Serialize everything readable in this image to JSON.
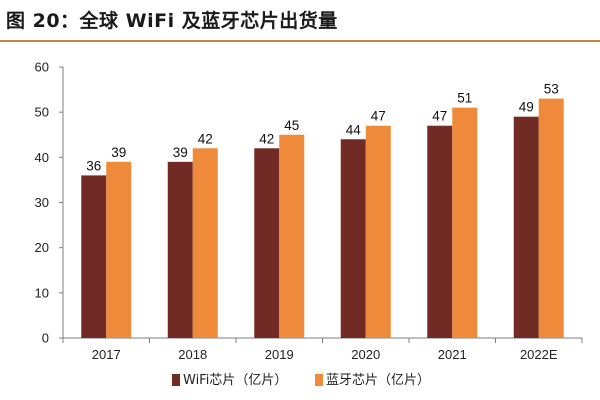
{
  "title": "图 20：全球 WiFi 及蓝牙芯片出货量",
  "colors": {
    "accent_rule": "#c0863a"
  },
  "chart_data": {
    "type": "bar",
    "categories": [
      "2017",
      "2018",
      "2019",
      "2020",
      "2021",
      "2022E"
    ],
    "series": [
      {
        "name": "WiFi芯片（亿片）",
        "values": [
          36,
          39,
          42,
          44,
          47,
          49
        ],
        "color": "#722a24"
      },
      {
        "name": "蓝牙芯片（亿片）",
        "values": [
          39,
          42,
          45,
          47,
          51,
          53
        ],
        "color": "#ee8a3a"
      }
    ],
    "ylim": [
      0,
      60
    ],
    "yticks": [
      0,
      10,
      20,
      30,
      40,
      50,
      60
    ],
    "grid": false,
    "legend_position": "bottom-left",
    "data_labels": true
  }
}
